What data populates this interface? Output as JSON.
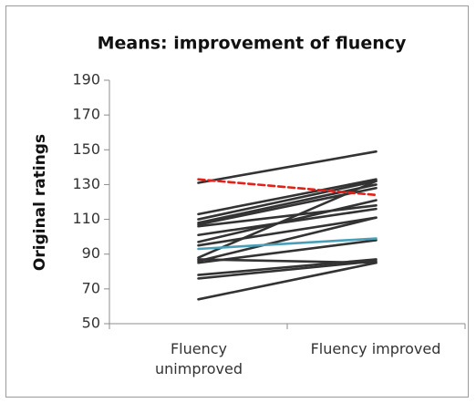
{
  "chart_data": {
    "type": "line",
    "title": "Means: improvement of fluency",
    "ylabel": "Original ratings",
    "categories": [
      "Fluency unimproved",
      "Fluency improved"
    ],
    "ylim": [
      50,
      190
    ],
    "yticks": [
      50,
      70,
      90,
      110,
      130,
      150,
      170,
      190
    ],
    "series": [
      {
        "color": "#333333",
        "values": [
          131,
          149
        ]
      },
      {
        "color": "#333333",
        "values": [
          113,
          133
        ]
      },
      {
        "color": "#333333",
        "values": [
          110,
          132
        ]
      },
      {
        "color": "#333333",
        "values": [
          108,
          130
        ]
      },
      {
        "color": "#333333",
        "values": [
          107,
          128
        ]
      },
      {
        "color": "#333333",
        "values": [
          106,
          118
        ]
      },
      {
        "color": "#333333",
        "values": [
          101,
          116
        ]
      },
      {
        "color": "#333333",
        "values": [
          97,
          121
        ]
      },
      {
        "color": "#333333",
        "values": [
          95,
          111
        ]
      },
      {
        "color": "#333333",
        "values": [
          88,
          132
        ]
      },
      {
        "color": "#333333",
        "values": [
          86,
          111
        ]
      },
      {
        "color": "#333333",
        "values": [
          85,
          98
        ]
      },
      {
        "color": "#333333",
        "values": [
          87,
          85
        ]
      },
      {
        "color": "#333333",
        "values": [
          78,
          87
        ]
      },
      {
        "color": "#333333",
        "values": [
          76,
          86
        ]
      },
      {
        "color": "#333333",
        "values": [
          64,
          85
        ]
      },
      {
        "color": "#4a9fb8",
        "values": [
          93,
          99
        ]
      },
      {
        "color": "#e32119",
        "values": [
          133,
          124
        ],
        "dashed": true
      }
    ]
  }
}
